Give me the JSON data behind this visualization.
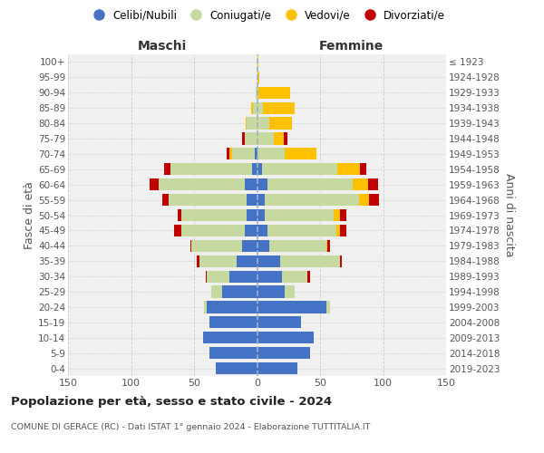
{
  "age_groups": [
    "0-4",
    "5-9",
    "10-14",
    "15-19",
    "20-24",
    "25-29",
    "30-34",
    "35-39",
    "40-44",
    "45-49",
    "50-54",
    "55-59",
    "60-64",
    "65-69",
    "70-74",
    "75-79",
    "80-84",
    "85-89",
    "90-94",
    "95-99",
    "100+"
  ],
  "birth_years": [
    "2019-2023",
    "2014-2018",
    "2009-2013",
    "2004-2008",
    "1999-2003",
    "1994-1998",
    "1989-1993",
    "1984-1988",
    "1979-1983",
    "1974-1978",
    "1969-1973",
    "1964-1968",
    "1959-1963",
    "1954-1958",
    "1949-1953",
    "1944-1948",
    "1939-1943",
    "1934-1938",
    "1929-1933",
    "1924-1928",
    "≤ 1923"
  ],
  "maschi": {
    "celibi": [
      33,
      38,
      43,
      38,
      40,
      28,
      22,
      16,
      12,
      10,
      8,
      8,
      10,
      4,
      2,
      0,
      0,
      0,
      0,
      0,
      0
    ],
    "coniugati": [
      0,
      0,
      0,
      0,
      2,
      8,
      18,
      30,
      40,
      50,
      52,
      62,
      68,
      65,
      18,
      10,
      8,
      3,
      1,
      0,
      0
    ],
    "vedovi": [
      0,
      0,
      0,
      0,
      0,
      0,
      0,
      0,
      0,
      0,
      0,
      0,
      0,
      0,
      2,
      0,
      1,
      2,
      0,
      0,
      0
    ],
    "divorziati": [
      0,
      0,
      0,
      0,
      0,
      0,
      1,
      2,
      1,
      6,
      3,
      5,
      7,
      5,
      2,
      2,
      0,
      0,
      0,
      0,
      0
    ]
  },
  "femmine": {
    "nubili": [
      32,
      42,
      45,
      35,
      55,
      22,
      20,
      18,
      10,
      8,
      6,
      6,
      8,
      4,
      0,
      0,
      0,
      0,
      0,
      0,
      0
    ],
    "coniugate": [
      0,
      0,
      0,
      0,
      3,
      8,
      20,
      48,
      45,
      55,
      55,
      75,
      68,
      60,
      22,
      13,
      10,
      5,
      1,
      0,
      0
    ],
    "vedove": [
      0,
      0,
      0,
      0,
      0,
      0,
      0,
      0,
      1,
      3,
      5,
      8,
      12,
      18,
      25,
      8,
      18,
      25,
      25,
      2,
      1
    ],
    "divorziate": [
      0,
      0,
      0,
      0,
      0,
      0,
      2,
      1,
      2,
      5,
      5,
      8,
      8,
      5,
      0,
      3,
      0,
      0,
      0,
      0,
      0
    ]
  },
  "colors": {
    "celibi_nubili": "#4472c4",
    "coniugati": "#c5d9a0",
    "vedovi": "#ffc000",
    "divorziati": "#c00000"
  },
  "xlim": 150,
  "title": "Popolazione per età, sesso e stato civile - 2024",
  "subtitle": "COMUNE DI GERACE (RC) - Dati ISTAT 1° gennaio 2024 - Elaborazione TUTTITALIA.IT",
  "ylabel_left": "Fasce di età",
  "ylabel_right": "Anni di nascita",
  "xlabel_left": "Maschi",
  "xlabel_right": "Femmine",
  "bg_color": "#f0f0f0",
  "grid_color": "#cccccc",
  "bar_height": 0.78
}
